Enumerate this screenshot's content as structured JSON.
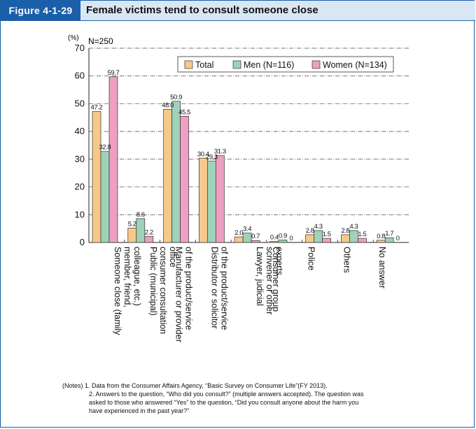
{
  "header": {
    "figure_label": "Figure 4-1-29",
    "title": "Female victims tend to consult someone close"
  },
  "chart_data": {
    "type": "bar",
    "unit_label": "(%)",
    "sample_label": "N=250",
    "ylim": [
      0,
      70
    ],
    "yticks": [
      0,
      10,
      20,
      30,
      40,
      50,
      60,
      70
    ],
    "legend_position": "top-right",
    "categories": [
      "Someone close (family member, friend, colleague, etc.)",
      "Public (municipal) consumer consultation office",
      "Manufacturer or provider of the product/service",
      "Distributor or solicitor of the product/service",
      "Lawyer, judicial scrivener or other experts",
      "Consumer group",
      "Police",
      "Others",
      "No answer"
    ],
    "series": [
      {
        "name": "Total",
        "color": "#f6c98a",
        "values": [
          47.2,
          5.2,
          48.0,
          30.4,
          2.0,
          0.4,
          2.8,
          2.8,
          0.8
        ]
      },
      {
        "name": "Men (N=116)",
        "color": "#9fd2b8",
        "values": [
          32.8,
          8.6,
          50.9,
          29.3,
          3.4,
          0.9,
          4.3,
          4.3,
          1.7
        ]
      },
      {
        "name": "Women (N=134)",
        "color": "#ee9fc3",
        "values": [
          59.7,
          2.2,
          45.5,
          31.3,
          0.7,
          0,
          1.5,
          1.5,
          0
        ]
      }
    ]
  },
  "notes": [
    "(Notes) 1. Data from the Consumer Affairs Agency, “Basic Survey on Consumer Life”(FY 2013).",
    "2. Answers to the question, “Who did you consult?” (multiple answers accepted). The question was",
    "asked to those who answered “Yes” to the question, “Did you consult anyone about the harm you",
    "have experienced in the past year?”"
  ]
}
